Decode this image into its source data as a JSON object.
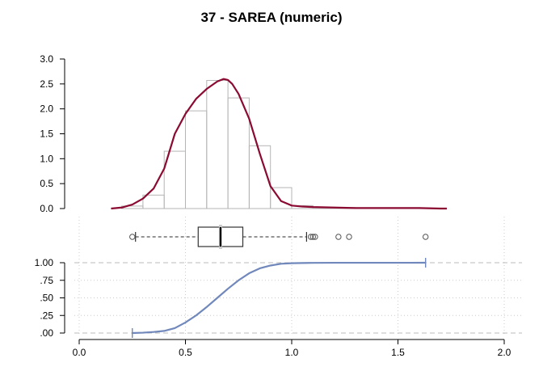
{
  "chart_data": {
    "type": "composite",
    "title": "37 - SAREA (numeric)",
    "x_axis": {
      "range": [
        0.0,
        2.0
      ],
      "ticks": [
        "0.0",
        "0.5",
        "1.0",
        "1.5",
        "2.0"
      ],
      "tick_values": [
        0,
        0.5,
        1,
        1.5,
        2
      ]
    },
    "histogram": {
      "type": "bar",
      "y_range": [
        0,
        3.0
      ],
      "y_ticks": [
        "0.0",
        "0.5",
        "1.0",
        "1.5",
        "2.0",
        "2.5",
        "3.0"
      ],
      "y_tick_values": [
        0,
        0.5,
        1,
        1.5,
        2,
        2.5,
        3
      ],
      "bins": [
        {
          "x0": 0.2,
          "x1": 0.3,
          "density": 0.05
        },
        {
          "x0": 0.3,
          "x1": 0.4,
          "density": 0.27
        },
        {
          "x0": 0.4,
          "x1": 0.5,
          "density": 1.15
        },
        {
          "x0": 0.5,
          "x1": 0.6,
          "density": 1.96
        },
        {
          "x0": 0.6,
          "x1": 0.7,
          "density": 2.57
        },
        {
          "x0": 0.7,
          "x1": 0.8,
          "density": 2.22
        },
        {
          "x0": 0.8,
          "x1": 0.9,
          "density": 1.26
        },
        {
          "x0": 0.9,
          "x1": 1.0,
          "density": 0.42
        },
        {
          "x0": 1.0,
          "x1": 1.1,
          "density": 0.06
        },
        {
          "x0": 1.1,
          "x1": 1.2,
          "density": 0.02
        },
        {
          "x0": 1.2,
          "x1": 1.3,
          "density": 0.02
        }
      ],
      "density_curve": {
        "color": "#8b0a32",
        "x": [
          0.15,
          0.2,
          0.25,
          0.3,
          0.35,
          0.4,
          0.45,
          0.5,
          0.55,
          0.6,
          0.65,
          0.68,
          0.7,
          0.72,
          0.75,
          0.8,
          0.85,
          0.9,
          0.95,
          1.0,
          1.05,
          1.1,
          1.2,
          1.3,
          1.4,
          1.5,
          1.6,
          1.7,
          1.73
        ],
        "y": [
          0.0,
          0.02,
          0.08,
          0.2,
          0.4,
          0.8,
          1.5,
          1.9,
          2.2,
          2.4,
          2.55,
          2.6,
          2.58,
          2.5,
          2.3,
          1.8,
          1.1,
          0.45,
          0.15,
          0.06,
          0.04,
          0.03,
          0.02,
          0.01,
          0.01,
          0.01,
          0.01,
          0.0,
          0.0
        ]
      }
    },
    "boxplot": {
      "whisker_low": 0.265,
      "q1": 0.56,
      "median": 0.665,
      "q3": 0.77,
      "whisker_high": 1.07,
      "mean": 0.665,
      "outliers": [
        0.25,
        1.09,
        1.1,
        1.11,
        1.22,
        1.27,
        1.63
      ]
    },
    "ecdf": {
      "type": "line",
      "color": "#7088bb",
      "y_range": [
        0,
        1.0
      ],
      "y_ticks": [
        ".00",
        ".25",
        ".50",
        ".75",
        "1.00"
      ],
      "y_tick_values": [
        0,
        0.25,
        0.5,
        0.75,
        1.0
      ],
      "x": [
        0.25,
        0.3,
        0.35,
        0.4,
        0.45,
        0.5,
        0.55,
        0.6,
        0.65,
        0.7,
        0.75,
        0.8,
        0.85,
        0.9,
        0.95,
        1.0,
        1.05,
        1.1,
        1.2,
        1.3,
        1.4,
        1.5,
        1.63
      ],
      "y": [
        0.0,
        0.005,
        0.015,
        0.03,
        0.07,
        0.15,
        0.25,
        0.37,
        0.5,
        0.63,
        0.75,
        0.85,
        0.92,
        0.96,
        0.985,
        0.993,
        0.996,
        0.998,
        0.999,
        0.999,
        0.999,
        0.999,
        1.0
      ]
    }
  }
}
